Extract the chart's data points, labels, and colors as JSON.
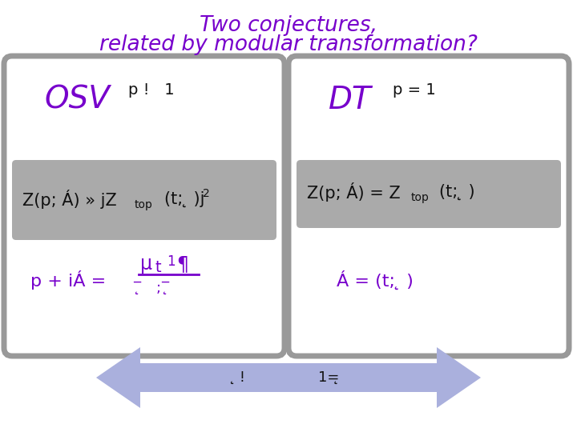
{
  "title_line1": "Two conjectures,",
  "title_line2": "related by modular transformation?",
  "title_color": "#7700cc",
  "title_fontsize": 19,
  "bg_color": "#ffffff",
  "box_bg": "#ffffff",
  "box_border": "#999999",
  "gray_band": "#aaaaaa",
  "purple": "#7700cc",
  "black": "#111111",
  "arrow_color": "#aab0dd",
  "osv_text": "OSV",
  "osv_sup": "p !   1",
  "dt_text": "DT",
  "dt_sup": "p = 1",
  "left_gray1": "Z(p; Á) » jZ",
  "left_gray2": "top",
  "left_gray3": "(t; ̨ )j",
  "left_gray4": "2",
  "right_gray1": "Z(p; Á) = Z",
  "right_gray2": "top",
  "right_gray3": "(t; ̨ )",
  "left_purple1": "p + iÁ =",
  "left_purple_frac_num": "μ",
  "left_purple_frac_t": "t",
  "left_purple_frac_1": "1",
  "left_purple_para": "¶",
  "left_purple_denom1": "̨",
  "left_purple_denom2": "̨",
  "right_purple": "Á = (t; ̨ )",
  "arrow_text1": "̨",
  "arrow_text2": "!",
  "arrow_text3": "1=̨"
}
